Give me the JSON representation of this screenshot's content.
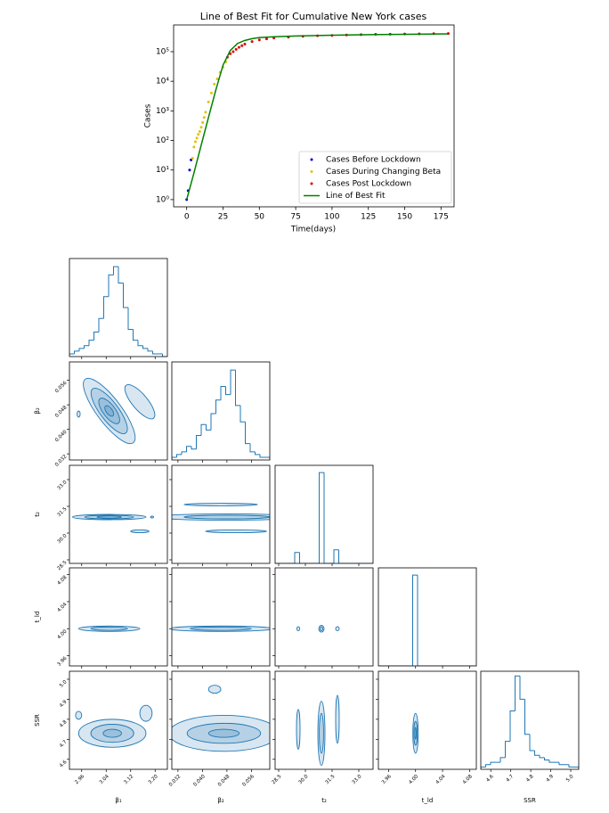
{
  "chart_data": [
    {
      "type": "line",
      "title": "Line of Best Fit for Cumulative New York cases",
      "x_label": "Time(days)",
      "y_label": "Cases",
      "xlim": [
        -9,
        184
      ],
      "xticks": [
        0,
        25,
        50,
        75,
        100,
        125,
        150,
        175
      ],
      "ylim": [
        0.57,
        800000
      ],
      "log_y": true,
      "yticks": [
        {
          "value": 1,
          "label": "10⁰"
        },
        {
          "value": 10,
          "label": "10¹"
        },
        {
          "value": 100,
          "label": "10²"
        },
        {
          "value": 1000,
          "label": "10³"
        },
        {
          "value": 10000,
          "label": "10⁴"
        },
        {
          "value": 100000,
          "label": "10⁵"
        }
      ],
      "legend": "lower right",
      "series": [
        {
          "name": "Cases Before Lockdown",
          "color": "#0000cc",
          "mode": "markers",
          "x": [
            0,
            1,
            2,
            3
          ],
          "values": [
            1,
            2,
            10,
            22
          ]
        },
        {
          "name": "Cases During Changing Beta",
          "color": "#e5c100",
          "mode": "markers",
          "x": [
            4,
            5,
            6,
            7,
            8,
            9,
            10,
            11,
            12,
            13,
            15,
            17,
            19,
            21,
            23,
            25,
            27
          ],
          "values": [
            25,
            60,
            90,
            120,
            160,
            200,
            280,
            400,
            600,
            900,
            2000,
            4000,
            8000,
            12000,
            20000,
            30000,
            45000
          ]
        },
        {
          "name": "Cases Post Lockdown",
          "color": "#e00000",
          "mode": "markers",
          "x": [
            28,
            30,
            32,
            34,
            36,
            38,
            40,
            45,
            50,
            55,
            60,
            70,
            80,
            90,
            100,
            110,
            120,
            130,
            140,
            150,
            160,
            170,
            180
          ],
          "values": [
            65000,
            85000,
            100000,
            120000,
            140000,
            160000,
            180000,
            220000,
            250000,
            270000,
            290000,
            310000,
            330000,
            345000,
            355000,
            365000,
            375000,
            385000,
            390000,
            395000,
            400000,
            405000,
            410000
          ]
        },
        {
          "name": "Line of Best Fit",
          "color": "#008000",
          "mode": "line",
          "x": [
            0,
            5,
            10,
            15,
            20,
            25,
            30,
            35,
            40,
            45,
            50,
            60,
            75,
            100,
            125,
            150,
            180
          ],
          "values": [
            1,
            8,
            70,
            600,
            5000,
            35000,
            110000,
            190000,
            240000,
            275000,
            300000,
            320000,
            340000,
            360000,
            375000,
            385000,
            400000
          ]
        }
      ]
    },
    {
      "type": "corner",
      "color": "#1f77b4",
      "variables": [
        {
          "label": "β₁",
          "lim": [
            2.92,
            3.24
          ],
          "ticks": [
            2.96,
            3.04,
            3.12,
            {
              "value": 3.2,
              "label": "3.20"
            }
          ]
        },
        {
          "label": "β₂",
          "lim": [
            0.03,
            0.062
          ],
          "ticks": [
            0.032,
            {
              "value": 0.04,
              "label": "0.040"
            },
            0.048,
            0.056
          ]
        },
        {
          "label": "t₂",
          "lim": [
            28.3,
            33.8
          ],
          "ticks": [
            28.5,
            {
              "value": 30,
              "label": "30.0"
            },
            31.5,
            {
              "value": 33,
              "label": "33.0"
            }
          ]
        },
        {
          "label": "t_ld",
          "lim": [
            3.945,
            4.09
          ],
          "ticks": [
            3.96,
            {
              "value": 4,
              "label": "4.00"
            },
            4.04,
            4.08
          ]
        },
        {
          "label": "SSR",
          "lim": [
            4.55,
            5.04
          ],
          "ticks": [
            4.6,
            4.7,
            4.8,
            4.9,
            {
              "value": 5,
              "label": "5.0"
            }
          ]
        }
      ],
      "histograms": [
        {
          "ylim": [
            0,
            36
          ],
          "bins": [
            2.92,
            2.936,
            2.952,
            2.968,
            2.984,
            3.0,
            3.016,
            3.032,
            3.048,
            3.064,
            3.08,
            3.096,
            3.112,
            3.128,
            3.144,
            3.16,
            3.176,
            3.192,
            3.208,
            3.224,
            3.24
          ],
          "counts": [
            1,
            2,
            3,
            4,
            6,
            9,
            14,
            22,
            30,
            33,
            27,
            18,
            10,
            6,
            4,
            3,
            2,
            1,
            1,
            0
          ]
        },
        {
          "ylim": [
            0,
            36
          ],
          "bins": [
            0.03,
            0.0316,
            0.0332,
            0.0348,
            0.0364,
            0.038,
            0.0396,
            0.0412,
            0.0428,
            0.0444,
            0.046,
            0.0476,
            0.0492,
            0.0508,
            0.0524,
            0.054,
            0.0556,
            0.0572,
            0.0588,
            0.0604,
            0.062
          ],
          "counts": [
            1,
            2,
            3,
            5,
            4,
            9,
            13,
            11,
            17,
            22,
            27,
            24,
            33,
            20,
            14,
            6,
            3,
            2,
            1,
            1
          ]
        },
        {
          "ylim": [
            0,
            108
          ],
          "bins": [
            28.3,
            28.575,
            28.85,
            29.125,
            29.4,
            29.675,
            29.95,
            30.225,
            30.5,
            30.775,
            31.05,
            31.325,
            31.6,
            31.875,
            32.15,
            32.425,
            32.7,
            32.975,
            33.25,
            33.525,
            33.8
          ],
          "counts": [
            0,
            0,
            0,
            0,
            12,
            0,
            0,
            0,
            0,
            100,
            0,
            0,
            15,
            0,
            0,
            0,
            0,
            0,
            0,
            0
          ]
        },
        {
          "ylim": [
            0,
            108
          ],
          "bins": [
            3.945,
            3.95225,
            3.9595,
            3.96675,
            3.974,
            3.98125,
            3.9885,
            3.99575,
            4.003,
            4.01025,
            4.0175,
            4.02475,
            4.032,
            4.03925,
            4.0465,
            4.05375,
            4.061,
            4.06825,
            4.0755,
            4.08275,
            4.09
          ],
          "counts": [
            0,
            0,
            0,
            0,
            0,
            0,
            0,
            100,
            0,
            0,
            0,
            0,
            0,
            0,
            0,
            0,
            0,
            0,
            0,
            0
          ]
        },
        {
          "ylim": [
            0,
            42
          ],
          "bins": [
            4.55,
            4.5745,
            4.599,
            4.6235,
            4.648,
            4.6725,
            4.697,
            4.7215,
            4.746,
            4.7705,
            4.795,
            4.8195,
            4.844,
            4.8685,
            4.893,
            4.9175,
            4.942,
            4.9665,
            4.991,
            5.0155,
            5.04
          ],
          "counts": [
            1,
            2,
            3,
            3,
            5,
            12,
            25,
            40,
            30,
            15,
            8,
            6,
            5,
            4,
            3,
            3,
            2,
            2,
            1,
            1
          ]
        }
      ],
      "pairs": [
        [],
        [
          [
            {
              "cx": 3.05,
              "cy": 0.046,
              "rx": 0.13,
              "ry": 0.004,
              "rot": 53
            },
            {
              "cx": 3.05,
              "cy": 0.046,
              "rx": 0.09,
              "ry": 0.003,
              "rot": 53
            },
            {
              "cx": 3.05,
              "cy": 0.046,
              "rx": 0.05,
              "ry": 0.002,
              "rot": 53
            },
            {
              "cx": 3.05,
              "cy": 0.046,
              "rx": 0.02,
              "ry": 0.001,
              "rot": 53
            },
            {
              "cx": 3.15,
              "cy": 0.049,
              "rx": 0.07,
              "ry": 0.0025,
              "rot": 50
            },
            {
              "cx": 2.95,
              "cy": 0.045,
              "rx": 0.005,
              "ry": 0.001,
              "rot": 0
            }
          ]
        ],
        [
          [
            {
              "cx": 3.05,
              "cy": 30.9,
              "rx": 0.12,
              "ry": 0.15,
              "rot": 0
            },
            {
              "cx": 3.05,
              "cy": 30.9,
              "rx": 0.08,
              "ry": 0.1,
              "rot": 0
            },
            {
              "cx": 3.05,
              "cy": 30.9,
              "rx": 0.04,
              "ry": 0.06,
              "rot": 0
            },
            {
              "cx": 3.15,
              "cy": 30.1,
              "rx": 0.03,
              "ry": 0.08,
              "rot": 0
            },
            {
              "cx": 3.19,
              "cy": 30.9,
              "rx": 0.005,
              "ry": 0.05,
              "rot": 0
            }
          ],
          [
            {
              "cx": 0.048,
              "cy": 30.9,
              "rx": 0.023,
              "ry": 0.18,
              "rot": 0
            },
            {
              "cx": 0.048,
              "cy": 30.9,
              "rx": 0.014,
              "ry": 0.1,
              "rot": 0
            },
            {
              "cx": 0.046,
              "cy": 31.6,
              "rx": 0.012,
              "ry": 0.07,
              "rot": 0
            },
            {
              "cx": 0.051,
              "cy": 30.1,
              "rx": 0.01,
              "ry": 0.08,
              "rot": 0
            }
          ]
        ],
        [
          [
            {
              "cx": 3.05,
              "cy": 4.0,
              "rx": 0.1,
              "ry": 0.004,
              "rot": 0
            },
            {
              "cx": 3.05,
              "cy": 4.0,
              "rx": 0.06,
              "ry": 0.0025,
              "rot": 0
            }
          ],
          [
            {
              "cx": 0.046,
              "cy": 4.0,
              "rx": 0.017,
              "ry": 0.004,
              "rot": 0
            },
            {
              "cx": 0.046,
              "cy": 4.0,
              "rx": 0.01,
              "ry": 0.0025,
              "rot": 0
            }
          ],
          [
            {
              "cx": 29.6,
              "cy": 4.0,
              "rx": 0.08,
              "ry": 0.003,
              "rot": 0
            },
            {
              "cx": 30.9,
              "cy": 4.0,
              "rx": 0.15,
              "ry": 0.005,
              "rot": 0
            },
            {
              "cx": 30.9,
              "cy": 4.0,
              "rx": 0.08,
              "ry": 0.003,
              "rot": 0
            },
            {
              "cx": 31.8,
              "cy": 4.0,
              "rx": 0.1,
              "ry": 0.003,
              "rot": 0
            }
          ]
        ],
        [
          [
            {
              "cx": 3.06,
              "cy": 4.73,
              "rx": 0.11,
              "ry": 0.07,
              "rot": 0
            },
            {
              "cx": 3.06,
              "cy": 4.73,
              "rx": 0.07,
              "ry": 0.045,
              "rot": 0
            },
            {
              "cx": 3.06,
              "cy": 4.73,
              "rx": 0.03,
              "ry": 0.02,
              "rot": 0
            },
            {
              "cx": 3.17,
              "cy": 4.83,
              "rx": 0.02,
              "ry": 0.04,
              "rot": 0
            },
            {
              "cx": 2.95,
              "cy": 4.82,
              "rx": 0.01,
              "ry": 0.02,
              "rot": 0
            }
          ],
          [
            {
              "cx": 0.047,
              "cy": 4.73,
              "rx": 0.018,
              "ry": 0.09,
              "rot": 0
            },
            {
              "cx": 0.047,
              "cy": 4.73,
              "rx": 0.012,
              "ry": 0.05,
              "rot": 0
            },
            {
              "cx": 0.047,
              "cy": 4.73,
              "rx": 0.005,
              "ry": 0.02,
              "rot": 0
            },
            {
              "cx": 0.044,
              "cy": 4.95,
              "rx": 0.002,
              "ry": 0.02,
              "rot": 0
            }
          ],
          [
            {
              "cx": 30.9,
              "cy": 4.73,
              "rx": 0.2,
              "ry": 0.16,
              "rot": 0
            },
            {
              "cx": 30.9,
              "cy": 4.73,
              "rx": 0.12,
              "ry": 0.1,
              "rot": 0
            },
            {
              "cx": 29.6,
              "cy": 4.75,
              "rx": 0.1,
              "ry": 0.1,
              "rot": 0
            },
            {
              "cx": 31.8,
              "cy": 4.8,
              "rx": 0.1,
              "ry": 0.12,
              "rot": 0
            }
          ],
          [
            {
              "cx": 4.0,
              "cy": 4.73,
              "rx": 0.004,
              "ry": 0.1,
              "rot": 0
            },
            {
              "cx": 4.0,
              "cy": 4.73,
              "rx": 0.0025,
              "ry": 0.06,
              "rot": 0
            },
            {
              "cx": 4.0,
              "cy": 4.73,
              "rx": 0.001,
              "ry": 0.03,
              "rot": 0
            }
          ]
        ]
      ]
    }
  ]
}
